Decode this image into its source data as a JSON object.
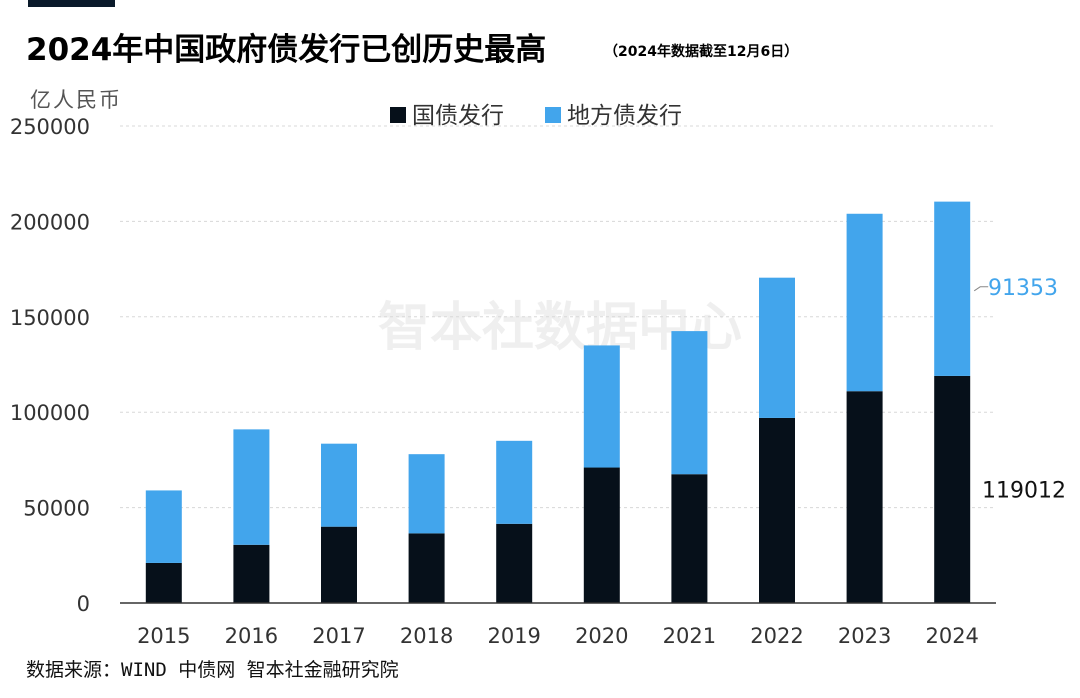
{
  "header": {
    "title": "2024年中国政府债发行已创历史最高",
    "subtitle": "（2024年数据截至12月6日）"
  },
  "unit_label": "亿人民币",
  "source": "数据来源：WIND 中债网 智本社金融研究院",
  "watermark": "智本社数据中心",
  "colors": {
    "national": "#06101a",
    "local": "#42a5ec"
  },
  "chart_data": {
    "type": "bar",
    "stacked": true,
    "categories": [
      "2015",
      "2016",
      "2017",
      "2018",
      "2019",
      "2020",
      "2021",
      "2022",
      "2023",
      "2024"
    ],
    "series": [
      {
        "name": "国债发行",
        "values": [
          21000,
          30500,
          40000,
          36500,
          41500,
          71000,
          67500,
          97000,
          111000,
          119012
        ]
      },
      {
        "name": "地方债发行",
        "values": [
          38000,
          60500,
          43500,
          41500,
          43500,
          64000,
          75000,
          73500,
          93000,
          91353
        ]
      }
    ],
    "ylim": [
      0,
      250000
    ],
    "yticks": [
      0,
      50000,
      100000,
      150000,
      200000,
      250000
    ],
    "grid": true,
    "legend": "top-center",
    "annotations": [
      {
        "category": "2024",
        "series": "国债发行",
        "text": "119012"
      },
      {
        "category": "2024",
        "series": "地方债发行",
        "text": "91353"
      }
    ]
  }
}
